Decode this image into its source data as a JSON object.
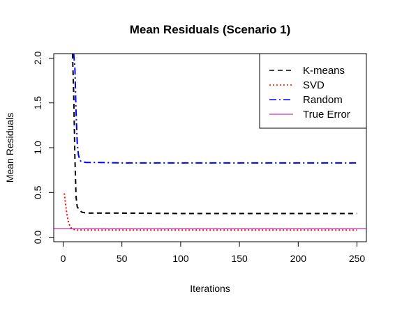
{
  "chart_data": {
    "type": "line",
    "title": "Mean Residuals (Scenario 1)",
    "xlabel": "Iterations",
    "ylabel": "Mean Residuals",
    "xlim": [
      -8,
      258
    ],
    "ylim": [
      -0.05,
      2.05
    ],
    "xticks": [
      0,
      50,
      100,
      150,
      200,
      250
    ],
    "yticks": [
      0.0,
      0.5,
      1.0,
      1.5,
      2.0
    ],
    "xtick_labels": [
      "0",
      "50",
      "100",
      "150",
      "200",
      "250"
    ],
    "ytick_labels": [
      "0.0",
      "0.5",
      "1.0",
      "1.5",
      "2.0"
    ],
    "grid": false,
    "legend_position": "top-right",
    "series": [
      {
        "name": "K-means",
        "color": "#000000",
        "style": "dashed",
        "x": [
          8,
          9,
          10,
          11,
          12,
          14,
          16,
          20,
          30,
          50,
          100,
          150,
          200,
          250
        ],
        "y": [
          2.05,
          1.6,
          0.9,
          0.45,
          0.34,
          0.3,
          0.28,
          0.27,
          0.27,
          0.27,
          0.265,
          0.265,
          0.265,
          0.265
        ]
      },
      {
        "name": "SVD",
        "color": "#ff0000",
        "style": "dotted",
        "x": [
          1,
          2,
          3,
          4,
          5,
          6,
          7,
          8,
          10,
          12,
          15,
          20,
          50,
          100,
          150,
          200,
          250
        ],
        "y": [
          0.49,
          0.38,
          0.28,
          0.2,
          0.15,
          0.12,
          0.1,
          0.09,
          0.085,
          0.08,
          0.08,
          0.08,
          0.08,
          0.08,
          0.08,
          0.08,
          0.08
        ]
      },
      {
        "name": "Random",
        "color": "#0000ff",
        "style": "dashdot",
        "x": [
          9,
          10,
          11,
          12,
          13,
          14,
          15,
          17,
          20,
          30,
          50,
          100,
          150,
          200,
          250
        ],
        "y": [
          2.05,
          1.9,
          1.4,
          1.05,
          0.92,
          0.87,
          0.85,
          0.84,
          0.835,
          0.835,
          0.83,
          0.83,
          0.83,
          0.83,
          0.83
        ]
      },
      {
        "name": "True Error",
        "color": "#b000b0",
        "style": "solid",
        "hline": 0.095
      }
    ]
  }
}
